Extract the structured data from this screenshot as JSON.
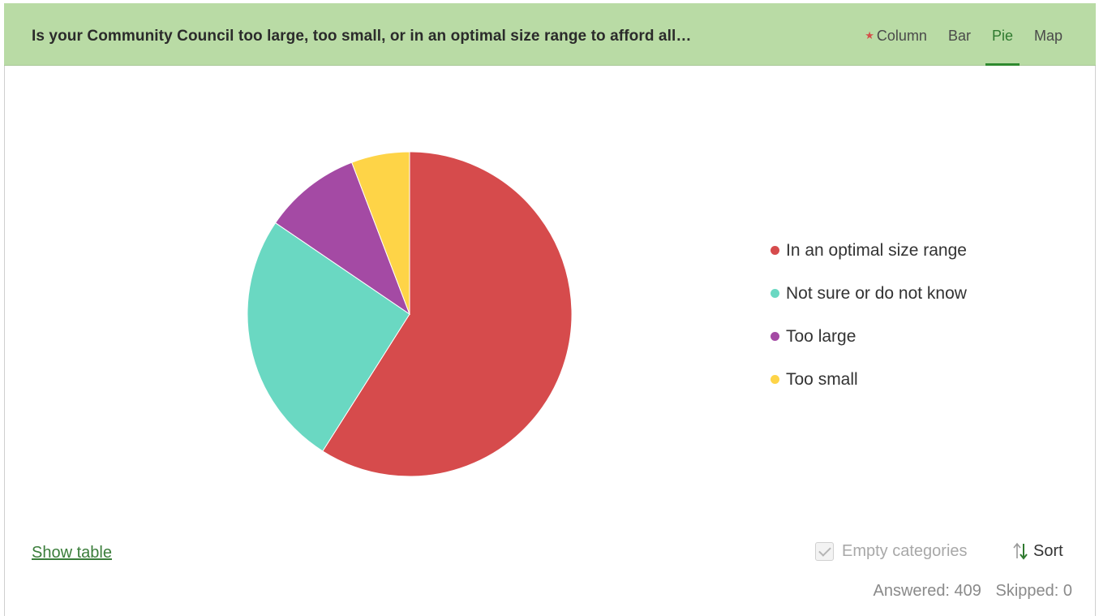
{
  "header": {
    "question": "Is your Community Council too large, too small, or in an optimal size range to afford all…",
    "tabs": [
      {
        "label": "Column",
        "starred": true,
        "active": false
      },
      {
        "label": "Bar",
        "starred": false,
        "active": false
      },
      {
        "label": "Pie",
        "starred": false,
        "active": true
      },
      {
        "label": "Map",
        "starred": false,
        "active": false
      }
    ]
  },
  "chart_data": {
    "type": "pie",
    "categories": [
      "In an optimal size range",
      "Not sure or do not know",
      "Too large",
      "Too small"
    ],
    "values": [
      59,
      25.5,
      9.7,
      5.8
    ],
    "colors": [
      "#d64b4c",
      "#6ad8c2",
      "#a44aa4",
      "#fed447"
    ],
    "legend_position": "right"
  },
  "footer": {
    "show_table": "Show table",
    "empty_categories": "Empty categories",
    "sort": "Sort",
    "answered": "Answered: 409",
    "skipped": "Skipped: 0"
  }
}
